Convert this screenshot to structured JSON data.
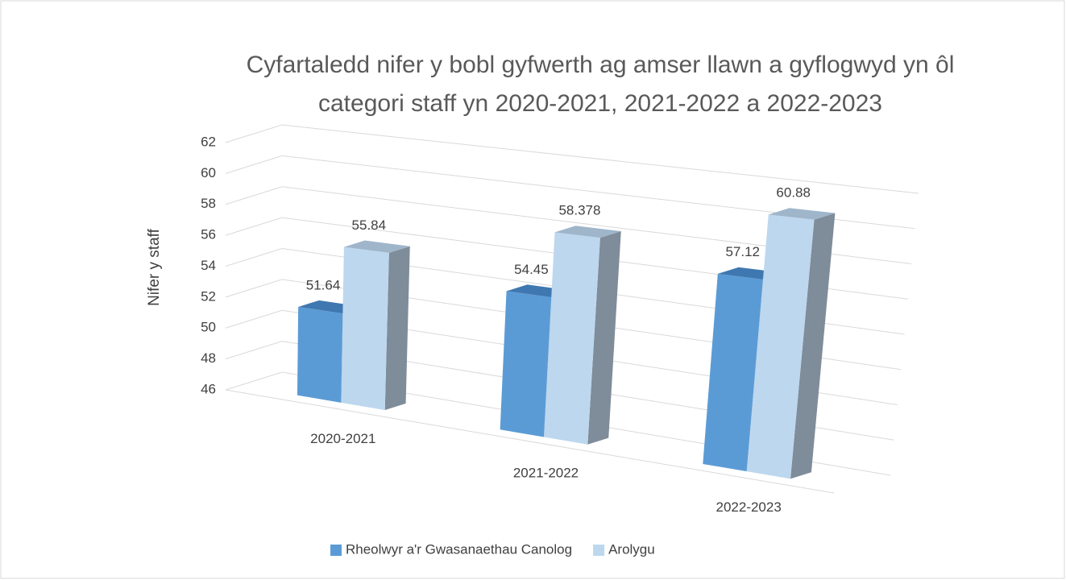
{
  "chart_data": {
    "type": "bar3d",
    "title": [
      "Cyfartaledd nifer y bobl gyfwerth ag amser llawn a gyflogwyd yn ôl",
      "categori staff yn 2020-2021, 2021-2022 a 2022-2023"
    ],
    "y_label": "Nifer y staff",
    "categories": [
      "2020-2021",
      "2021-2022",
      "2022-2023"
    ],
    "series": [
      {
        "name": "Rheolwyr a'r Gwasanaethau Canolog",
        "color": "#5b9bd5",
        "values": [
          51.64,
          54.45,
          57.12
        ]
      },
      {
        "name": "Arolygu",
        "color": "#bdd7ee",
        "values": [
          55.84,
          58.378,
          60.88
        ]
      }
    ],
    "ylim": [
      46,
      62
    ],
    "yticks": [
      46,
      48,
      50,
      52,
      54,
      56,
      58,
      60,
      62
    ],
    "grid": true,
    "legend": "bottom"
  }
}
